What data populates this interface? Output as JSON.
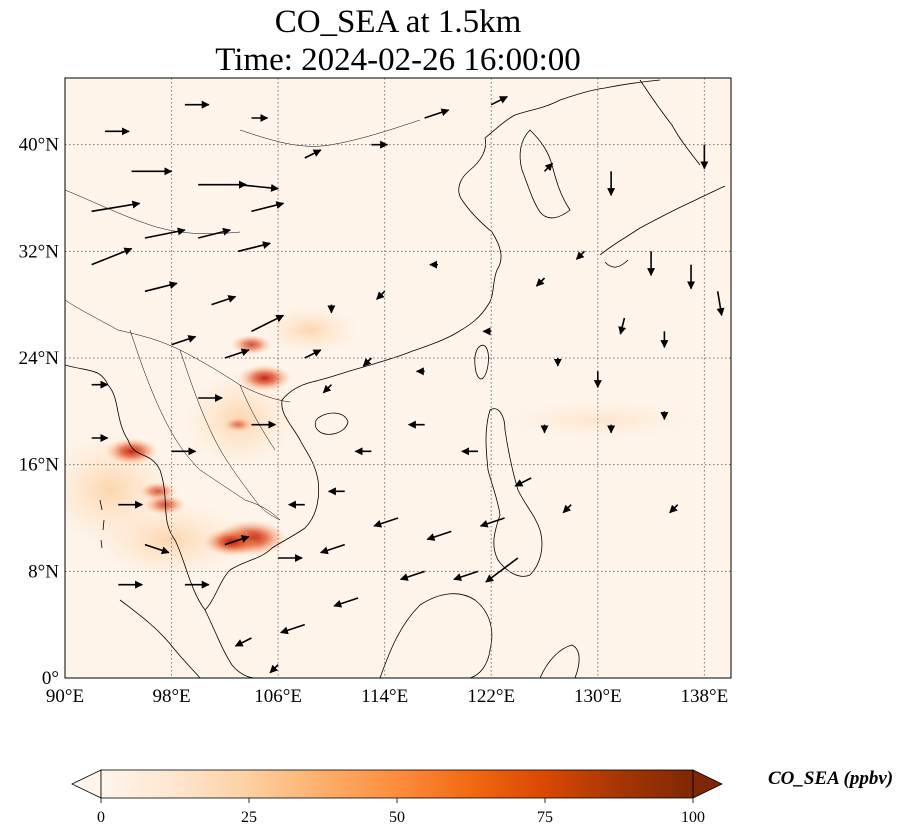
{
  "title": {
    "line1": "CO_SEA at 1.5km",
    "line2": "Time: 2024-02-26 16:00:00"
  },
  "map": {
    "extent": {
      "lon": [
        90,
        140
      ],
      "lat": [
        0,
        45
      ]
    },
    "gridlines": true,
    "lon_ticks": [
      {
        "value": 90,
        "label": "90°E"
      },
      {
        "value": 98,
        "label": "98°E"
      },
      {
        "value": 106,
        "label": "106°E"
      },
      {
        "value": 114,
        "label": "114°E"
      },
      {
        "value": 122,
        "label": "122°E"
      },
      {
        "value": 130,
        "label": "130°E"
      },
      {
        "value": 138,
        "label": "138°E"
      }
    ],
    "lat_ticks": [
      {
        "value": 0,
        "label": "0°"
      },
      {
        "value": 8,
        "label": "8°N"
      },
      {
        "value": 16,
        "label": "16°N"
      },
      {
        "value": 24,
        "label": "24°N"
      },
      {
        "value": 32,
        "label": "32°N"
      },
      {
        "value": 40,
        "label": "40°N"
      }
    ]
  },
  "colorbar": {
    "label": "CO_SEA (ppbv)",
    "ticks": [
      "0",
      "25",
      "50",
      "75",
      "100"
    ],
    "min": 0,
    "max": 100,
    "colors": [
      "#fff5eb",
      "#fee6ce",
      "#fdd0a2",
      "#fdae6b",
      "#fd8d3c",
      "#f16913",
      "#d94801",
      "#a63603",
      "#7f2704"
    ]
  },
  "co_hotspots": [
    {
      "lon": 104,
      "lat": 10.5,
      "value": 90
    },
    {
      "lon": 102.5,
      "lat": 10.2,
      "value": 65
    },
    {
      "lon": 105,
      "lat": 22.5,
      "value": 60
    },
    {
      "lon": 104,
      "lat": 25,
      "value": 40
    },
    {
      "lon": 95,
      "lat": 17,
      "value": 60
    },
    {
      "lon": 97,
      "lat": 14,
      "value": 35
    },
    {
      "lon": 97.5,
      "lat": 13,
      "value": 40
    },
    {
      "lon": 103,
      "lat": 19,
      "value": 20
    }
  ],
  "wind_arrows": [
    {
      "lon": 92,
      "lat": 35,
      "u": 6,
      "v": 1
    },
    {
      "lon": 95,
      "lat": 38,
      "u": 5,
      "v": 0
    },
    {
      "lon": 100,
      "lat": 37,
      "u": 6,
      "v": 0
    },
    {
      "lon": 103,
      "lat": 37,
      "u": 5,
      "v": -0.5
    },
    {
      "lon": 92,
      "lat": 31,
      "u": 5,
      "v": 2
    },
    {
      "lon": 96,
      "lat": 33,
      "u": 5,
      "v": 1
    },
    {
      "lon": 100,
      "lat": 33,
      "u": 4,
      "v": 1
    },
    {
      "lon": 104,
      "lat": 35,
      "u": 4,
      "v": 1
    },
    {
      "lon": 103,
      "lat": 32,
      "u": 4,
      "v": 1
    },
    {
      "lon": 96,
      "lat": 29,
      "u": 4,
      "v": 1
    },
    {
      "lon": 101,
      "lat": 28,
      "u": 3,
      "v": 1
    },
    {
      "lon": 104,
      "lat": 26,
      "u": 4,
      "v": 2
    },
    {
      "lon": 102,
      "lat": 24,
      "u": 3,
      "v": 1
    },
    {
      "lon": 100,
      "lat": 21,
      "u": 3,
      "v": 0
    },
    {
      "lon": 104,
      "lat": 19,
      "u": 3,
      "v": 0
    },
    {
      "lon": 98,
      "lat": 17,
      "u": 3,
      "v": 0
    },
    {
      "lon": 94,
      "lat": 13,
      "u": 3,
      "v": 0
    },
    {
      "lon": 96,
      "lat": 10,
      "u": 3,
      "v": -1
    },
    {
      "lon": 94,
      "lat": 7,
      "u": 3,
      "v": 0
    },
    {
      "lon": 99,
      "lat": 7,
      "u": 3,
      "v": 0
    },
    {
      "lon": 102,
      "lat": 10,
      "u": 3,
      "v": 1
    },
    {
      "lon": 106,
      "lat": 9,
      "u": 3,
      "v": 0
    },
    {
      "lon": 111,
      "lat": 10,
      "u": -3,
      "v": -1
    },
    {
      "lon": 115,
      "lat": 12,
      "u": -3,
      "v": -1
    },
    {
      "lon": 119,
      "lat": 11,
      "u": -3,
      "v": -1
    },
    {
      "lon": 123,
      "lat": 12,
      "u": -3,
      "v": -1
    },
    {
      "lon": 112,
      "lat": 6,
      "u": -3,
      "v": -1
    },
    {
      "lon": 117,
      "lat": 8,
      "u": -3,
      "v": -1
    },
    {
      "lon": 121,
      "lat": 8,
      "u": -3,
      "v": -1
    },
    {
      "lon": 124,
      "lat": 9,
      "u": -4,
      "v": -3
    },
    {
      "lon": 108,
      "lat": 4,
      "u": -3,
      "v": -1
    },
    {
      "lon": 104,
      "lat": 3,
      "u": -2,
      "v": -1
    },
    {
      "lon": 113,
      "lat": 17,
      "u": -2,
      "v": 0
    },
    {
      "lon": 117,
      "lat": 19,
      "u": -2,
      "v": 0
    },
    {
      "lon": 121,
      "lat": 17,
      "u": -2,
      "v": 0
    },
    {
      "lon": 125,
      "lat": 15,
      "u": -2,
      "v": -1
    },
    {
      "lon": 110,
      "lat": 22,
      "u": -1,
      "v": -1
    },
    {
      "lon": 113,
      "lat": 24,
      "u": -1,
      "v": -1
    },
    {
      "lon": 117,
      "lat": 23,
      "u": -1,
      "v": 0
    },
    {
      "lon": 110,
      "lat": 28,
      "u": 0,
      "v": -1
    },
    {
      "lon": 114,
      "lat": 29,
      "u": -1,
      "v": -1
    },
    {
      "lon": 118,
      "lat": 31,
      "u": -1,
      "v": 0
    },
    {
      "lon": 108,
      "lat": 39,
      "u": 2,
      "v": 1
    },
    {
      "lon": 113,
      "lat": 40,
      "u": 2,
      "v": 0
    },
    {
      "lon": 117,
      "lat": 42,
      "u": 3,
      "v": 1
    },
    {
      "lon": 122,
      "lat": 43,
      "u": 2,
      "v": 1
    },
    {
      "lon": 126,
      "lat": 38,
      "u": 1,
      "v": 1
    },
    {
      "lon": 129,
      "lat": 32,
      "u": -1,
      "v": -1
    },
    {
      "lon": 131,
      "lat": 38,
      "u": 0,
      "v": -3
    },
    {
      "lon": 134,
      "lat": 32,
      "u": 0,
      "v": -3
    },
    {
      "lon": 137,
      "lat": 31,
      "u": 0,
      "v": -3
    },
    {
      "lon": 139,
      "lat": 29,
      "u": 0.5,
      "v": -3
    },
    {
      "lon": 135,
      "lat": 26,
      "u": 0,
      "v": -2
    },
    {
      "lon": 132,
      "lat": 27,
      "u": -0.5,
      "v": -2
    },
    {
      "lon": 138,
      "lat": 40,
      "u": 0,
      "v": -3
    },
    {
      "lon": 130,
      "lat": 23,
      "u": 0,
      "v": -2
    },
    {
      "lon": 127,
      "lat": 24,
      "u": 0,
      "v": -1
    },
    {
      "lon": 126,
      "lat": 19,
      "u": 0,
      "v": -1
    },
    {
      "lon": 131,
      "lat": 19,
      "u": 0,
      "v": -1
    },
    {
      "lon": 135,
      "lat": 20,
      "u": 0,
      "v": -1
    },
    {
      "lon": 136,
      "lat": 13,
      "u": -1,
      "v": -1
    },
    {
      "lon": 128,
      "lat": 13,
      "u": -1,
      "v": -1
    },
    {
      "lon": 122,
      "lat": 26,
      "u": -1,
      "v": 0
    },
    {
      "lon": 126,
      "lat": 30,
      "u": -1,
      "v": -1
    },
    {
      "lon": 106,
      "lat": 1,
      "u": -1,
      "v": -1
    },
    {
      "lon": 92,
      "lat": 22,
      "u": 2,
      "v": 0
    },
    {
      "lon": 92,
      "lat": 18,
      "u": 2,
      "v": 0
    },
    {
      "lon": 93,
      "lat": 41,
      "u": 3,
      "v": 0
    },
    {
      "lon": 99,
      "lat": 43,
      "u": 3,
      "v": 0
    },
    {
      "lon": 104,
      "lat": 42,
      "u": 2,
      "v": 0
    },
    {
      "lon": 98,
      "lat": 25,
      "u": 3,
      "v": 1
    },
    {
      "lon": 108,
      "lat": 24,
      "u": 2,
      "v": 1
    },
    {
      "lon": 108,
      "lat": 13,
      "u": -2,
      "v": 0
    },
    {
      "lon": 111,
      "lat": 14,
      "u": -2,
      "v": 0
    }
  ]
}
